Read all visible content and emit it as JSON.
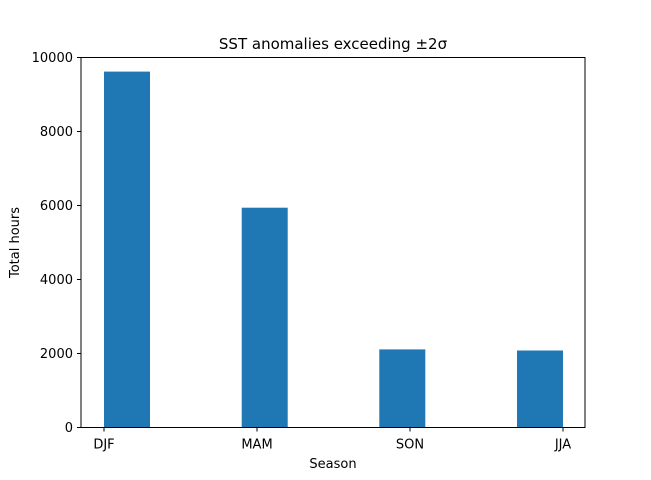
{
  "chart_data": {
    "type": "bar",
    "title": "SST anomalies exceeding ±2σ",
    "xlabel": "Season",
    "ylabel": "Total hours",
    "categories": [
      "DJF",
      "MAM",
      "SON",
      "JJA"
    ],
    "values": [
      9620,
      5940,
      2110,
      2080
    ],
    "ylim": [
      0,
      10000
    ],
    "yticks": [
      0,
      2000,
      4000,
      6000,
      8000,
      10000
    ],
    "bar_color": "#1f77b4",
    "grid": false,
    "legend": "none"
  }
}
